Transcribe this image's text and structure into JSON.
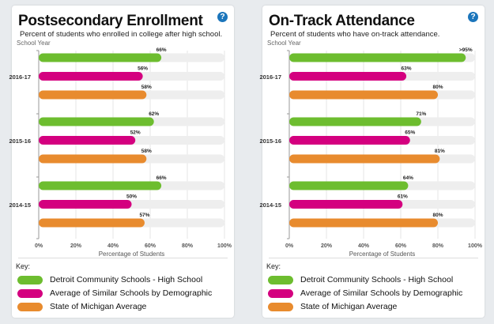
{
  "chart_data": [
    {
      "type": "bar",
      "title": "Postsecondary Enrollment",
      "subtitle": "Percent of students who enrolled in college after high school.",
      "ylabel": "School Year",
      "xlabel": "Percentage of Students",
      "xlim": [
        0,
        100
      ],
      "xticks": [
        "0%",
        "20%",
        "40%",
        "60%",
        "80%",
        "100%"
      ],
      "grid": true,
      "categories": [
        "2016-17",
        "2015-16",
        "2014-15"
      ],
      "series": [
        {
          "name": "Detroit Community Schools - High School",
          "values": [
            66,
            62,
            66
          ],
          "labels": [
            "66%",
            "62%",
            "66%"
          ]
        },
        {
          "name": "Average of Similar Schools by Demographic",
          "values": [
            56,
            52,
            50
          ],
          "labels": [
            "56%",
            "52%",
            "50%"
          ]
        },
        {
          "name": "State of Michigan Average",
          "values": [
            58,
            58,
            57
          ],
          "labels": [
            "58%",
            "58%",
            "57%"
          ]
        }
      ]
    },
    {
      "type": "bar",
      "title": "On-Track Attendance",
      "subtitle": "Percent of students who have on-track attendance.",
      "ylabel": "School Year",
      "xlabel": "Percentage of Students",
      "xlim": [
        0,
        100
      ],
      "xticks": [
        "0%",
        "20%",
        "40%",
        "60%",
        "80%",
        "100%"
      ],
      "grid": true,
      "categories": [
        "2016-17",
        "2015-16",
        "2014-15"
      ],
      "series": [
        {
          "name": "Detroit Community Schools - High School",
          "values": [
            95,
            71,
            64
          ],
          "labels": [
            ">95%",
            "71%",
            "64%"
          ]
        },
        {
          "name": "Average of Similar Schools by Demographic",
          "values": [
            63,
            65,
            61
          ],
          "labels": [
            "63%",
            "65%",
            "61%"
          ]
        },
        {
          "name": "State of Michigan Average",
          "values": [
            80,
            81,
            80
          ],
          "labels": [
            "80%",
            "81%",
            "80%"
          ]
        }
      ]
    }
  ],
  "key_label": "Key:",
  "help_icon": "question-circle-icon",
  "colors": [
    "#6dbd2f",
    "#d4007f",
    "#e88b2e"
  ],
  "track_color": "#eeeeee",
  "help_color": "#1b75bb"
}
